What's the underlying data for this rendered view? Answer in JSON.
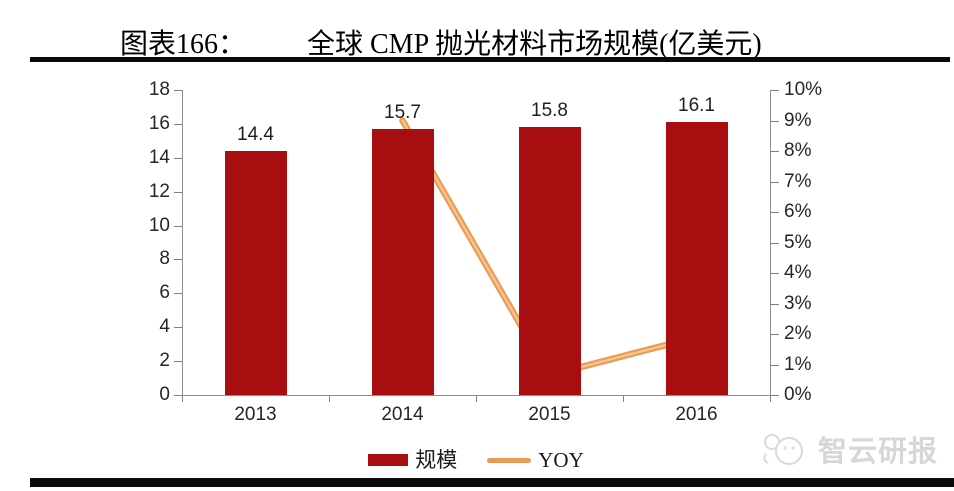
{
  "header": {
    "figure_label": "图表166：",
    "title": "全球 CMP 抛光材料市场规模(亿美元)"
  },
  "chart_data": {
    "type": "bar",
    "categories": [
      "2013",
      "2014",
      "2015",
      "2016"
    ],
    "series": [
      {
        "name": "规模",
        "type": "bar",
        "axis": "left",
        "values": [
          14.4,
          15.7,
          15.8,
          16.1
        ],
        "labels": [
          "14.4",
          "15.7",
          "15.8",
          "16.1"
        ],
        "color": "#A80D10"
      },
      {
        "name": "YOY",
        "type": "line",
        "axis": "right",
        "values": [
          null,
          9.0,
          0.65,
          1.9
        ],
        "color": "#E99A54",
        "highlight_color": "#F7C38E"
      }
    ],
    "left_axis": {
      "min": 0,
      "max": 18,
      "step": 2,
      "tick_labels": [
        "0",
        "2",
        "4",
        "6",
        "8",
        "10",
        "12",
        "14",
        "16",
        "18"
      ]
    },
    "right_axis": {
      "min": 0,
      "max": 10,
      "step": 1,
      "tick_labels": [
        "0%",
        "1%",
        "2%",
        "3%",
        "4%",
        "5%",
        "6%",
        "7%",
        "8%",
        "9%",
        "10%"
      ]
    },
    "grid": false,
    "legend_position": "bottom",
    "legend": [
      {
        "label": "规模",
        "shape": "rect",
        "color": "#A80D10"
      },
      {
        "label": "YOY",
        "shape": "line",
        "color": "#E99A54"
      }
    ]
  },
  "watermark": {
    "text": "智云研报"
  },
  "colors": {
    "bar": "#A80D10",
    "line": "#E99A54",
    "axis": "#8c8c8c",
    "rule": "#0a0a0a",
    "watermark": "#d7d7d7"
  }
}
